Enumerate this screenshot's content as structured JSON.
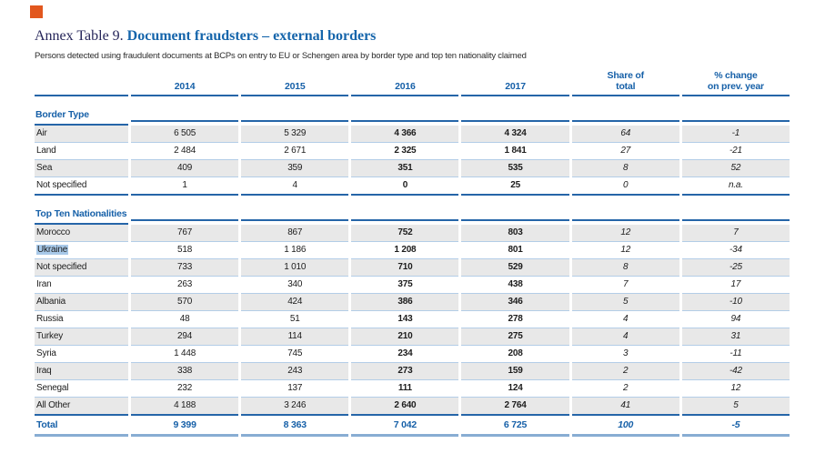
{
  "page": {
    "corner_marker": "orange-square",
    "corner_marker_color": "#e2571e"
  },
  "header": {
    "title_prefix": "Annex Table 9.",
    "title_main": "Document fraudsters – external borders",
    "subtitle": "Persons detected using fraudulent documents at BCPs on entry to EU or Schengen area by border type and top ten nationality claimed"
  },
  "table": {
    "columns": [
      "2014",
      "2015",
      "2016",
      "2017",
      "Share of\ntotal",
      "% change\non prev. year"
    ],
    "sections": [
      {
        "title": "Border Type",
        "rows": [
          {
            "label": "Air",
            "values": [
              "6 505",
              "5 329",
              "4 366",
              "4 324",
              "64",
              "-1"
            ]
          },
          {
            "label": "Land",
            "values": [
              "2 484",
              "2 671",
              "2 325",
              "1 841",
              "27",
              "-21"
            ]
          },
          {
            "label": "Sea",
            "values": [
              "409",
              "359",
              "351",
              "535",
              "8",
              "52"
            ]
          },
          {
            "label": "Not specified",
            "values": [
              "1",
              "4",
              "0",
              "25",
              "0",
              "n.a."
            ]
          }
        ]
      },
      {
        "title": "Top Ten Nationalities",
        "rows": [
          {
            "label": "Morocco",
            "values": [
              "767",
              "867",
              "752",
              "803",
              "12",
              "7"
            ]
          },
          {
            "label": "Ukraine",
            "highlighted": true,
            "values": [
              "518",
              "1 186",
              "1 208",
              "801",
              "12",
              "-34"
            ]
          },
          {
            "label": "Not specified",
            "values": [
              "733",
              "1 010",
              "710",
              "529",
              "8",
              "-25"
            ]
          },
          {
            "label": "Iran",
            "values": [
              "263",
              "340",
              "375",
              "438",
              "7",
              "17"
            ]
          },
          {
            "label": "Albania",
            "values": [
              "570",
              "424",
              "386",
              "346",
              "5",
              "-10"
            ]
          },
          {
            "label": "Russia",
            "values": [
              "48",
              "51",
              "143",
              "278",
              "4",
              "94"
            ]
          },
          {
            "label": "Turkey",
            "values": [
              "294",
              "114",
              "210",
              "275",
              "4",
              "31"
            ]
          },
          {
            "label": "Syria",
            "values": [
              "1 448",
              "745",
              "234",
              "208",
              "3",
              "-11"
            ]
          },
          {
            "label": "Iraq",
            "values": [
              "338",
              "243",
              "273",
              "159",
              "2",
              "-42"
            ]
          },
          {
            "label": "Senegal",
            "values": [
              "232",
              "137",
              "111",
              "124",
              "2",
              "12"
            ]
          },
          {
            "label": "All Other",
            "values": [
              "4 188",
              "3 246",
              "2 640",
              "2 764",
              "41",
              "5"
            ]
          }
        ]
      }
    ],
    "total": {
      "label": "Total",
      "values": [
        "9 399",
        "8 363",
        "7 042",
        "6 725",
        "100",
        "-5"
      ]
    }
  }
}
